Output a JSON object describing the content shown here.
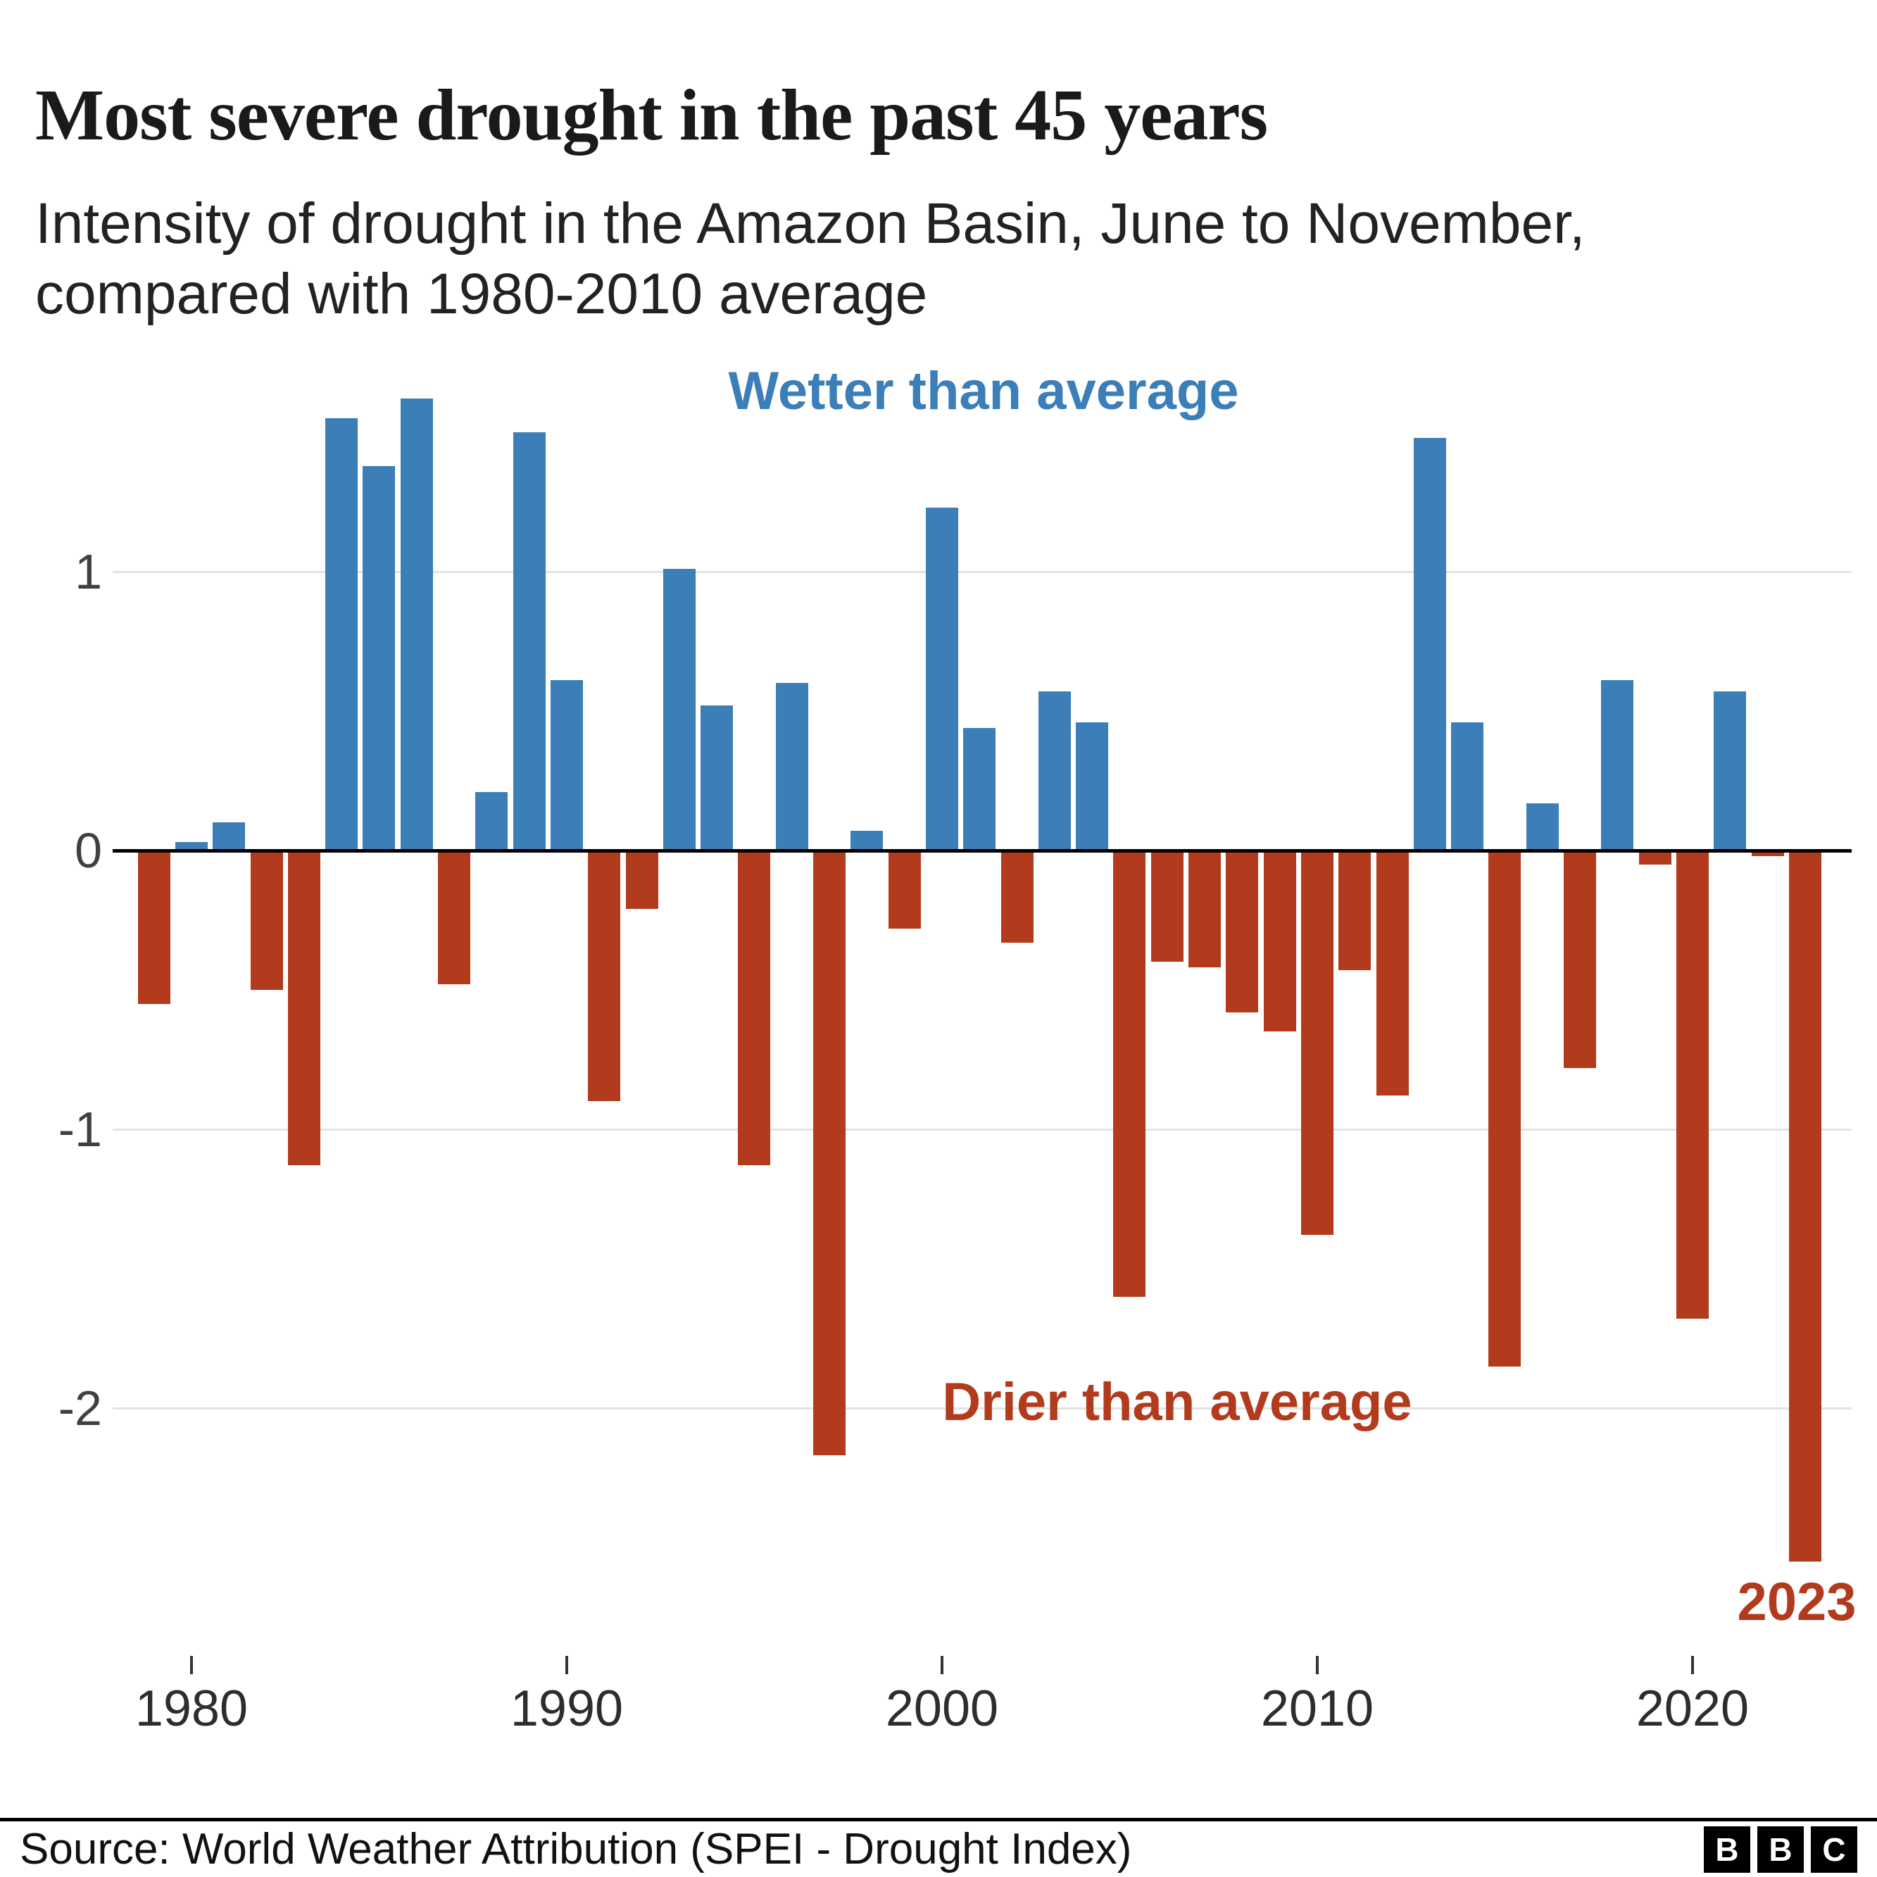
{
  "header": {
    "title": "Most severe drought in the past 45 years",
    "subtitle": "Intensity of drought in the Amazon Basin, June to November, compared with 1980-2010 average"
  },
  "chart_data": {
    "type": "bar",
    "title": "Most severe drought in the past 45 years",
    "subtitle": "Intensity of drought in the Amazon Basin, June to November, compared with 1980-2010 average",
    "x": [
      1979,
      1980,
      1981,
      1982,
      1983,
      1984,
      1985,
      1986,
      1987,
      1988,
      1989,
      1990,
      1991,
      1992,
      1993,
      1994,
      1995,
      1996,
      1997,
      1998,
      1999,
      2000,
      2001,
      2002,
      2003,
      2004,
      2005,
      2006,
      2007,
      2008,
      2009,
      2010,
      2011,
      2012,
      2013,
      2014,
      2015,
      2016,
      2017,
      2018,
      2019,
      2020,
      2021,
      2022,
      2023
    ],
    "values": [
      -0.55,
      0.03,
      0.1,
      -0.5,
      -1.13,
      1.55,
      1.38,
      1.62,
      -0.48,
      0.21,
      1.5,
      0.61,
      -0.9,
      -0.21,
      1.01,
      0.52,
      -1.13,
      0.6,
      -2.17,
      0.07,
      -0.28,
      1.23,
      0.44,
      -0.33,
      0.57,
      0.46,
      -1.6,
      -0.4,
      -0.42,
      -0.58,
      -0.65,
      -1.38,
      -0.43,
      -0.88,
      1.48,
      0.46,
      -1.85,
      0.17,
      -0.78,
      0.61,
      -0.05,
      -1.68,
      0.57,
      -0.02,
      -2.55
    ],
    "yticks": [
      1,
      0,
      -1,
      -2
    ],
    "xticks": [
      1980,
      1990,
      2000,
      2010,
      2020
    ],
    "ylim": [
      -2.8,
      1.9
    ],
    "grid": true,
    "colors": {
      "positive": "#3b7eb8",
      "negative": "#b23b1d"
    },
    "annotations": {
      "wetter": "Wetter than average",
      "drier": "Drier than average",
      "year_label": "2023"
    }
  },
  "footer": {
    "source": "Source: World Weather Attribution (SPEI - Drought Index)",
    "logo": [
      "B",
      "B",
      "C"
    ]
  }
}
